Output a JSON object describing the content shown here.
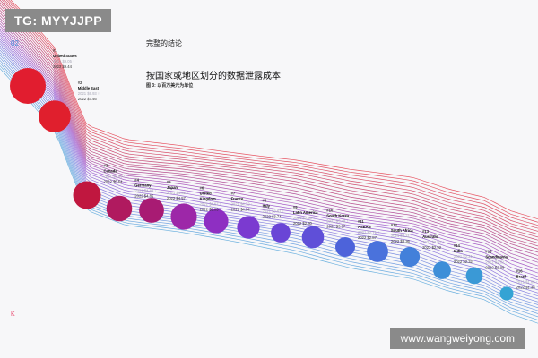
{
  "watermark_top": "TG: MYYJJPP",
  "watermark_bottom": "www.wangweiyong.com",
  "page_number": "02",
  "section_title": "完整的结论",
  "corner_mark": "K",
  "chart_data": {
    "type": "bubble-ranking",
    "title": "按国家或地区划分的数据泄露成本",
    "subtitle": "图 3: 以百万美元为单位",
    "palette": [
      "#e11d2f",
      "#c01744",
      "#a0176a",
      "#8a2dbe",
      "#6f4fd6",
      "#4d7bdc",
      "#3d9ad6"
    ],
    "regions": [
      {
        "rank": "#1",
        "name": [
          "United States"
        ],
        "y2021": "2021 $9.05 ↑",
        "y2022": "2022 $9.44",
        "value": 9.44,
        "color": "#e11d2f"
      },
      {
        "rank": "#2",
        "name": [
          "Middle East"
        ],
        "y2021": "2021 $6.93 ↑",
        "y2022": "2022 $7.46",
        "value": 7.46,
        "color": "#e01f2d"
      },
      {
        "rank": "#3",
        "name": [
          "Canada"
        ],
        "y2021": "2021 $5.40 ↑",
        "y2022": "2022 $5.64",
        "value": 5.64,
        "color": "#c0173f"
      },
      {
        "rank": "#4",
        "name": [
          "Germany"
        ],
        "y2021": "2021 $4.89 ↓",
        "y2022": "2022 $4.85",
        "value": 4.85,
        "color": "#b01a5f"
      },
      {
        "rank": "#5",
        "name": [
          "Japan"
        ],
        "y2021": "2021 $4.65 ↓",
        "y2022": "2022 $4.57",
        "value": 4.57,
        "color": "#a81b73"
      },
      {
        "rank": "#6",
        "name": [
          "United",
          "Kingdom"
        ],
        "y2021": "2021 $4.67 ↑",
        "y2022": "2022 $5.05",
        "value": 5.05,
        "color": "#9d27a8"
      },
      {
        "rank": "#7",
        "name": [
          "France"
        ],
        "y2021": "2021 $4.72 ↓",
        "y2022": "2022 $4.34",
        "value": 4.34,
        "color": "#8e2fc2"
      },
      {
        "rank": "#8",
        "name": [
          "Italy"
        ],
        "y2021": "2021 $3.61 ↑",
        "y2022": "2022 $3.74",
        "value": 3.74,
        "color": "#7b3ad0"
      },
      {
        "rank": "#9",
        "name": [
          "Latin America"
        ],
        "y2021": "2021 $2.56 ↑",
        "y2022": "2022 $2.80",
        "value": 2.8,
        "color": "#6a45d6"
      },
      {
        "rank": "#10",
        "name": [
          "South Korea"
        ],
        "y2021": "2021 $3.48 ↑",
        "y2022": "2022 $3.57",
        "value": 3.57,
        "color": "#5f4fd8"
      },
      {
        "rank": "#11",
        "name": [
          "ASEAN"
        ],
        "y2021": "2021 $2.71 ↑",
        "y2022": "2022 $2.87",
        "value": 2.87,
        "color": "#4d63da"
      },
      {
        "rank": "#12",
        "name": [
          "South Africa"
        ],
        "y2021": "2021 $3.21 ↑",
        "y2022": "2022 $3.36",
        "value": 3.36,
        "color": "#4a72dc"
      },
      {
        "rank": "#13",
        "name": [
          "Australia"
        ],
        "y2021": "2021 $2.92 ↑",
        "y2022": "2022 $2.92",
        "value": 2.92,
        "color": "#4380da"
      },
      {
        "rank": "#14",
        "name": [
          "India"
        ],
        "y2021": "2021 $2.21 ↑",
        "y2022": "2022 $2.32",
        "value": 2.32,
        "color": "#3d8ed8"
      },
      {
        "rank": "#15",
        "name": [
          "Scandinavia"
        ],
        "y2021": "2021 $2.01 ↑",
        "y2022": "2022 $2.08",
        "value": 2.08,
        "color": "#3a99d6"
      },
      {
        "rank": "#16",
        "name": [
          "Brazil"
        ],
        "y2021": "2021 $1.08 ↑",
        "y2022": "2022 $1.38",
        "value": 1.38,
        "color": "#34a3d4"
      }
    ]
  }
}
